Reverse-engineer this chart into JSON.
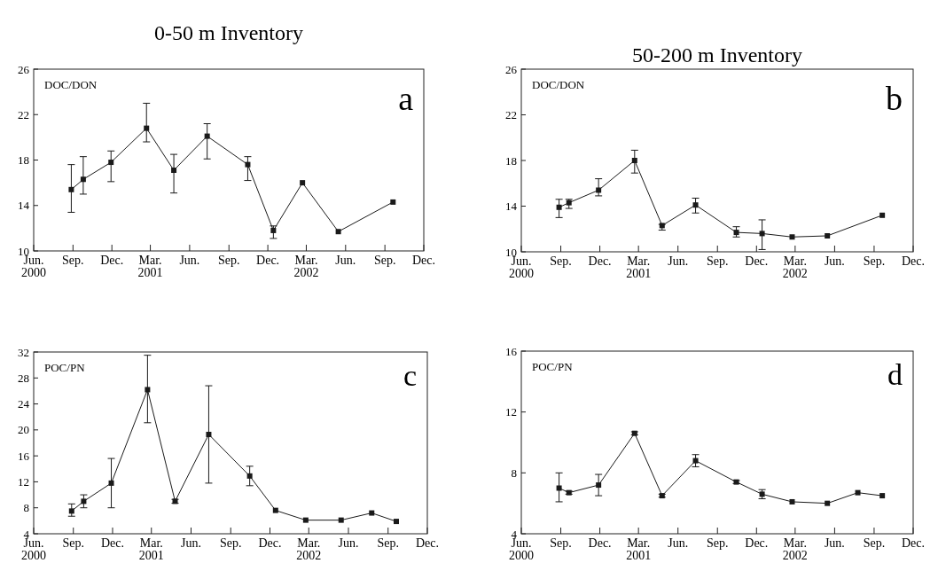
{
  "chart_data": [
    {
      "type": "line",
      "title": "0-50 m Inventory",
      "annotations": [
        "DOC/DON",
        "a"
      ],
      "marker": "square",
      "line_style": "solid",
      "grid": false,
      "x": [
        "2000-08-28",
        "2000-09-25",
        "2000-11-29",
        "2001-02-20",
        "2001-04-25",
        "2001-07-12",
        "2001-10-15",
        "2001-12-14",
        "2002-02-20",
        "2002-05-15",
        "2002-09-20"
      ],
      "series": [
        {
          "color": "#1a1a1a",
          "values": [
            15.4,
            16.3,
            17.8,
            20.8,
            17.1,
            20.1,
            17.6,
            11.8,
            16.0,
            11.7,
            14.3
          ],
          "errors": [
            [
              13.4,
              17.6
            ],
            [
              15.0,
              18.3
            ],
            [
              16.1,
              18.8
            ],
            [
              19.6,
              23.0
            ],
            [
              15.1,
              18.5
            ],
            [
              18.1,
              21.2
            ],
            [
              16.2,
              18.3
            ],
            [
              11.1,
              12.2
            ],
            null,
            null,
            null
          ]
        }
      ],
      "xlim": [
        "2000-06",
        "2002-12"
      ],
      "xticks": [
        {
          "value": "2000-06",
          "label": "Jun.\n2000"
        },
        {
          "value": "2000-09",
          "label": "Sep."
        },
        {
          "value": "2000-12",
          "label": "Dec."
        },
        {
          "value": "2001-03",
          "label": "Mar.\n2001"
        },
        {
          "value": "2001-06",
          "label": "Jun."
        },
        {
          "value": "2001-09",
          "label": "Sep."
        },
        {
          "value": "2001-12",
          "label": "Dec."
        },
        {
          "value": "2002-03",
          "label": "Mar.\n2002"
        },
        {
          "value": "2002-06",
          "label": "Jun."
        },
        {
          "value": "2002-09",
          "label": "Sep."
        },
        {
          "value": "2002-12",
          "label": "Dec."
        }
      ],
      "ylim": [
        10,
        26
      ],
      "yticks": [
        10,
        14,
        18,
        22,
        26
      ]
    },
    {
      "type": "line",
      "title": "50-200 m Inventory",
      "annotations": [
        "DOC/DON",
        "b"
      ],
      "marker": "square",
      "line_style": "solid",
      "grid": false,
      "x": [
        "2000-08-28",
        "2000-09-20",
        "2000-11-28",
        "2001-02-20",
        "2001-04-25",
        "2001-07-12",
        "2001-10-15",
        "2001-12-14",
        "2002-02-22",
        "2002-05-15",
        "2002-09-20"
      ],
      "series": [
        {
          "color": "#1a1a1a",
          "values": [
            13.9,
            14.3,
            15.4,
            18.0,
            12.3,
            14.1,
            11.7,
            11.6,
            11.3,
            11.4,
            13.2
          ],
          "errors": [
            [
              13.0,
              14.6
            ],
            [
              13.8,
              14.6
            ],
            [
              14.9,
              16.4
            ],
            [
              16.9,
              18.9
            ],
            [
              11.9,
              12.4
            ],
            [
              13.4,
              14.7
            ],
            [
              11.3,
              12.2
            ],
            [
              10.2,
              12.8
            ],
            null,
            null,
            null
          ]
        }
      ],
      "xlim": [
        "2000-06",
        "2002-12"
      ],
      "xticks": [
        {
          "value": "2000-06",
          "label": "Jun.\n2000"
        },
        {
          "value": "2000-09",
          "label": "Sep."
        },
        {
          "value": "2000-12",
          "label": "Dec."
        },
        {
          "value": "2001-03",
          "label": "Mar.\n2001"
        },
        {
          "value": "2001-06",
          "label": "Jun."
        },
        {
          "value": "2001-09",
          "label": "Sep."
        },
        {
          "value": "2001-12",
          "label": "Dec."
        },
        {
          "value": "2002-03",
          "label": "Mar.\n2002"
        },
        {
          "value": "2002-06",
          "label": "Jun."
        },
        {
          "value": "2002-09",
          "label": "Sep."
        },
        {
          "value": "2002-12",
          "label": "Dec."
        }
      ],
      "ylim": [
        10,
        26
      ],
      "yticks": [
        10,
        14,
        18,
        22,
        26
      ]
    },
    {
      "type": "line",
      "annotations": [
        "POC/PN",
        "c"
      ],
      "marker": "square",
      "line_style": "solid",
      "grid": false,
      "x": [
        "2000-08-28",
        "2000-09-25",
        "2000-11-28",
        "2001-02-20",
        "2001-04-25",
        "2001-07-12",
        "2001-10-15",
        "2001-12-14",
        "2002-02-22",
        "2002-05-15",
        "2002-07-25",
        "2002-09-20"
      ],
      "series": [
        {
          "color": "#1a1a1a",
          "values": [
            7.5,
            9.0,
            11.8,
            26.2,
            9.0,
            19.3,
            12.9,
            7.6,
            6.1,
            6.1,
            7.2,
            5.9
          ],
          "errors": [
            [
              6.7,
              8.6
            ],
            [
              8.0,
              10.0
            ],
            [
              8.0,
              15.6
            ],
            [
              21.1,
              31.5
            ],
            [
              8.7,
              9.3
            ],
            [
              11.8,
              26.8
            ],
            [
              11.4,
              14.4
            ],
            null,
            null,
            null,
            null,
            null
          ]
        }
      ],
      "xlim": [
        "2000-06",
        "2002-12"
      ],
      "xticks": [
        {
          "value": "2000-06",
          "label": "Jun.\n2000"
        },
        {
          "value": "2000-09",
          "label": "Sep."
        },
        {
          "value": "2000-12",
          "label": "Dec."
        },
        {
          "value": "2001-03",
          "label": "Mar.\n2001"
        },
        {
          "value": "2001-06",
          "label": "Jun."
        },
        {
          "value": "2001-09",
          "label": "Sep."
        },
        {
          "value": "2001-12",
          "label": "Dec."
        },
        {
          "value": "2002-03",
          "label": "Mar.\n2002"
        },
        {
          "value": "2002-06",
          "label": "Jun."
        },
        {
          "value": "2002-09",
          "label": "Sep."
        },
        {
          "value": "2002-12",
          "label": "Dec."
        }
      ],
      "ylim": [
        4,
        32
      ],
      "yticks": [
        4,
        8,
        12,
        16,
        20,
        24,
        28,
        32
      ]
    },
    {
      "type": "line",
      "annotations": [
        "POC/PN",
        "d"
      ],
      "marker": "square",
      "line_style": "solid",
      "grid": false,
      "x": [
        "2000-08-28",
        "2000-09-20",
        "2000-11-28",
        "2001-02-20",
        "2001-04-25",
        "2001-07-12",
        "2001-10-15",
        "2001-12-14",
        "2002-02-22",
        "2002-05-15",
        "2002-07-25",
        "2002-09-20"
      ],
      "series": [
        {
          "color": "#1a1a1a",
          "values": [
            7.0,
            6.7,
            7.2,
            10.6,
            6.5,
            8.8,
            7.4,
            6.6,
            6.1,
            6.0,
            6.7,
            6.5
          ],
          "errors": [
            [
              6.1,
              8.0
            ],
            [
              6.6,
              6.8
            ],
            [
              6.5,
              7.9
            ],
            [
              10.5,
              10.7
            ],
            [
              6.4,
              6.6
            ],
            [
              8.4,
              9.2
            ],
            [
              7.3,
              7.5
            ],
            [
              6.3,
              6.9
            ],
            null,
            null,
            null,
            null
          ]
        }
      ],
      "xlim": [
        "2000-06",
        "2002-12"
      ],
      "xticks": [
        {
          "value": "2000-06",
          "label": "Jun.\n2000"
        },
        {
          "value": "2000-09",
          "label": "Sep."
        },
        {
          "value": "2000-12",
          "label": "Dec."
        },
        {
          "value": "2001-03",
          "label": "Mar.\n2001"
        },
        {
          "value": "2001-06",
          "label": "Jun."
        },
        {
          "value": "2001-09",
          "label": "Sep."
        },
        {
          "value": "2001-12",
          "label": "Dec."
        },
        {
          "value": "2002-03",
          "label": "Mar.\n2002"
        },
        {
          "value": "2002-06",
          "label": "Jun."
        },
        {
          "value": "2002-09",
          "label": "Sep."
        },
        {
          "value": "2002-12",
          "label": "Dec."
        }
      ],
      "ylim": [
        4,
        16
      ],
      "yticks": [
        4,
        8,
        12,
        16
      ]
    }
  ]
}
